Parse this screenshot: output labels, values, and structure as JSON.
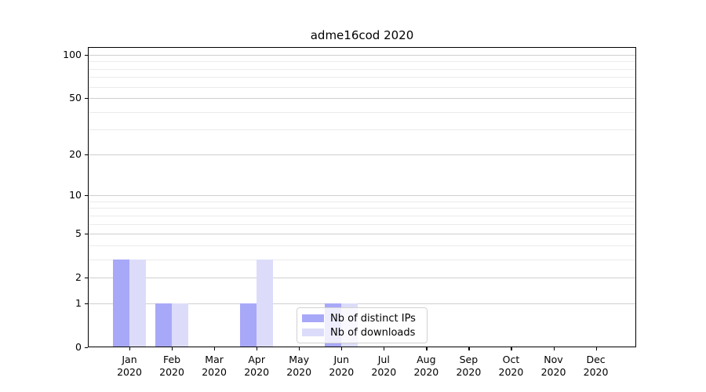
{
  "chart_data": {
    "type": "bar",
    "title": "adme16cod 2020",
    "categories": [
      "Jan",
      "Feb",
      "Mar",
      "Apr",
      "May",
      "Jun",
      "Jul",
      "Aug",
      "Sep",
      "Oct",
      "Nov",
      "Dec"
    ],
    "category_sublabel": "2020",
    "series": [
      {
        "name": "Nb of distinct IPs",
        "color": "#a8a8f8",
        "values": [
          3,
          1,
          0,
          1,
          0,
          1,
          0,
          0,
          0,
          0,
          0,
          0
        ]
      },
      {
        "name": "Nb of downloads",
        "color": "#dcdcfa",
        "values": [
          3,
          1,
          0,
          3,
          0,
          1,
          0,
          0,
          0,
          0,
          0,
          0
        ]
      }
    ],
    "yticks": [
      0,
      1,
      2,
      5,
      10,
      20,
      50,
      100
    ],
    "minor_gridline_values": [
      3,
      4,
      6,
      7,
      8,
      9,
      30,
      40,
      60,
      70,
      80,
      90
    ],
    "scale": "log1p",
    "ylim": [
      0,
      113
    ],
    "xlabel": "",
    "ylabel": "",
    "grid": "both",
    "legend_position": "lower center",
    "bar_layout": "grouped-pair"
  }
}
